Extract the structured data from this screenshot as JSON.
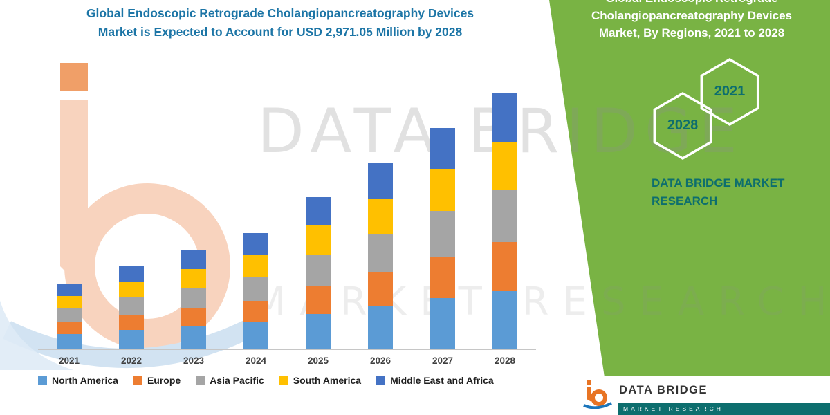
{
  "title": {
    "line1": "Global Endoscopic Retrograde Cholangiopancreatography Devices",
    "line2": "Market is Expected to Account for USD 2,971.05 Million by 2028"
  },
  "chart_data": {
    "type": "bar",
    "stacked": true,
    "title": "Global Endoscopic Retrograde Cholangiopancreatography Devices Market is Expected to Account for USD 2,971.05 Million by 2028",
    "unit": "USD Million",
    "categories": [
      "2021",
      "2022",
      "2023",
      "2024",
      "2025",
      "2026",
      "2027",
      "2028"
    ],
    "series": [
      {
        "name": "North America",
        "color": "#5B9BD5",
        "values": [
          177,
          225,
          265,
          313,
          410,
          498,
          594,
          683
        ]
      },
      {
        "name": "Europe",
        "color": "#ED7D31",
        "values": [
          145,
          177,
          217,
          249,
          329,
          402,
          482,
          562
        ]
      },
      {
        "name": "Asia Pacific",
        "color": "#A5A5A5",
        "values": [
          153,
          201,
          233,
          281,
          361,
          442,
          530,
          602
        ]
      },
      {
        "name": "South America",
        "color": "#FFC000",
        "values": [
          145,
          185,
          217,
          257,
          337,
          410,
          482,
          562
        ]
      },
      {
        "name": "Middle East and Africa",
        "color": "#4472C4",
        "values": [
          145,
          177,
          217,
          249,
          329,
          410,
          482,
          562
        ]
      }
    ],
    "totals": [
      765,
      965,
      1149,
      1349,
      1766,
      2162,
      2570,
      2971
    ],
    "ylim": [
      0,
      3200
    ],
    "grid": false,
    "legend_position": "bottom"
  },
  "side_panel": {
    "title_cut_line": "Global Endoscopic Retrograde",
    "title_line1": "Cholangiopancreatography Devices",
    "title_line2": "Market, By Regions, 2021 to 2028",
    "hex_back_year": "2028",
    "hex_front_year": "2021",
    "brand_line1": "DATA BRIDGE MARKET",
    "brand_line2": "RESEARCH"
  },
  "watermark": {
    "line1": "DATA BRIDGE",
    "line2": "MARKET RESEARCH"
  },
  "footer": {
    "brand": "DATA BRIDGE",
    "sub": "MARKET RESEARCH"
  },
  "colors": {
    "green_panel": "#79B344",
    "teal": "#0D6E6E",
    "title_blue": "#1C75A6"
  }
}
